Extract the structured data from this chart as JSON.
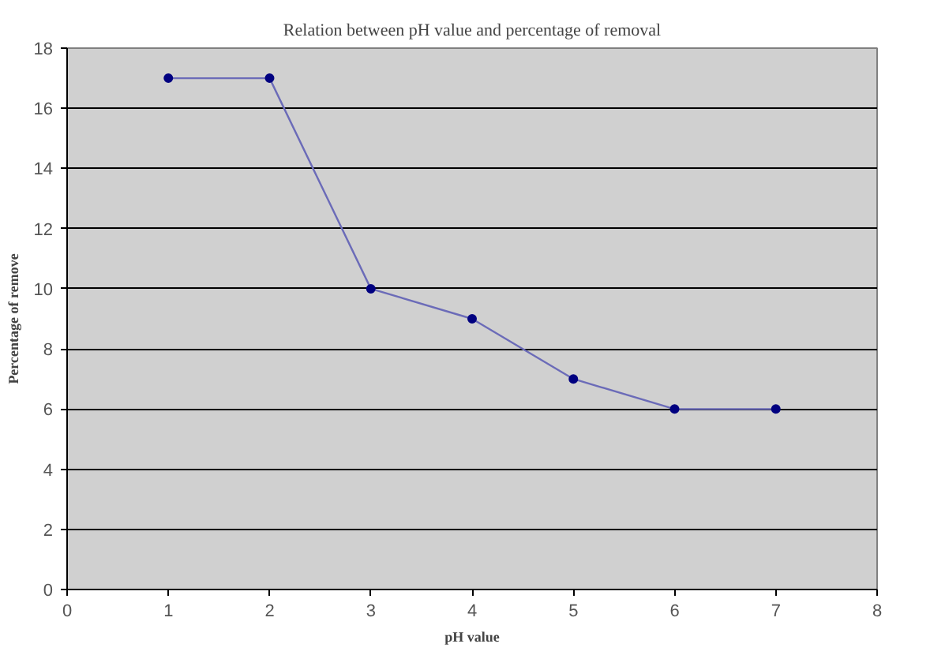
{
  "chart_data": {
    "type": "line",
    "title": "Relation between pH value and percentage of removal",
    "xlabel": "pH value",
    "ylabel": "Percentage of remove",
    "x": [
      1,
      2,
      3,
      4,
      5,
      6,
      7
    ],
    "series": [
      {
        "color": "#6b6bb8",
        "values": [
          17,
          17,
          10,
          9,
          7,
          6,
          6
        ]
      }
    ],
    "xlim": [
      0,
      8
    ],
    "xticks": [
      0,
      1,
      2,
      3,
      4,
      5,
      6,
      7,
      8
    ],
    "ylim": [
      0,
      18
    ],
    "yticks": [
      0,
      2,
      4,
      6,
      8,
      10,
      12,
      14,
      16,
      18
    ],
    "grid": "y",
    "marker": "circle",
    "line_style": "solid"
  }
}
